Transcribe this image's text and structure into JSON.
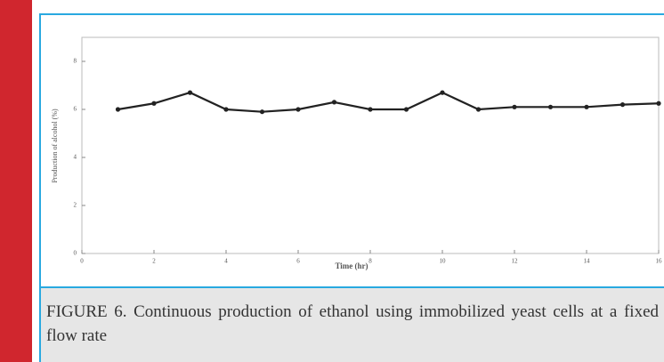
{
  "chart_data": {
    "type": "line",
    "xlabel": "Time (hr)",
    "ylabel": "Production of alcohol (%)",
    "x": [
      1,
      2,
      3,
      4,
      5,
      6,
      7,
      8,
      9,
      10,
      11,
      12,
      13,
      14,
      15,
      16
    ],
    "series": [
      {
        "color": "#222222",
        "values": [
          6.0,
          6.25,
          6.7,
          6.0,
          5.9,
          6.0,
          6.3,
          6.0,
          6.0,
          6.7,
          6.0,
          6.1,
          6.1,
          6.1,
          6.2,
          6.25
        ]
      }
    ],
    "xlim": [
      0,
      16
    ],
    "xticks": [
      0,
      2,
      4,
      6,
      8,
      10,
      12,
      14,
      16
    ],
    "ylim": [
      0,
      9
    ],
    "yticks": [
      0,
      2,
      4,
      6,
      8
    ]
  },
  "caption": "FIGURE 6. Continuous production of ethanol using immobilized yeast cells at a fixed flow rate"
}
